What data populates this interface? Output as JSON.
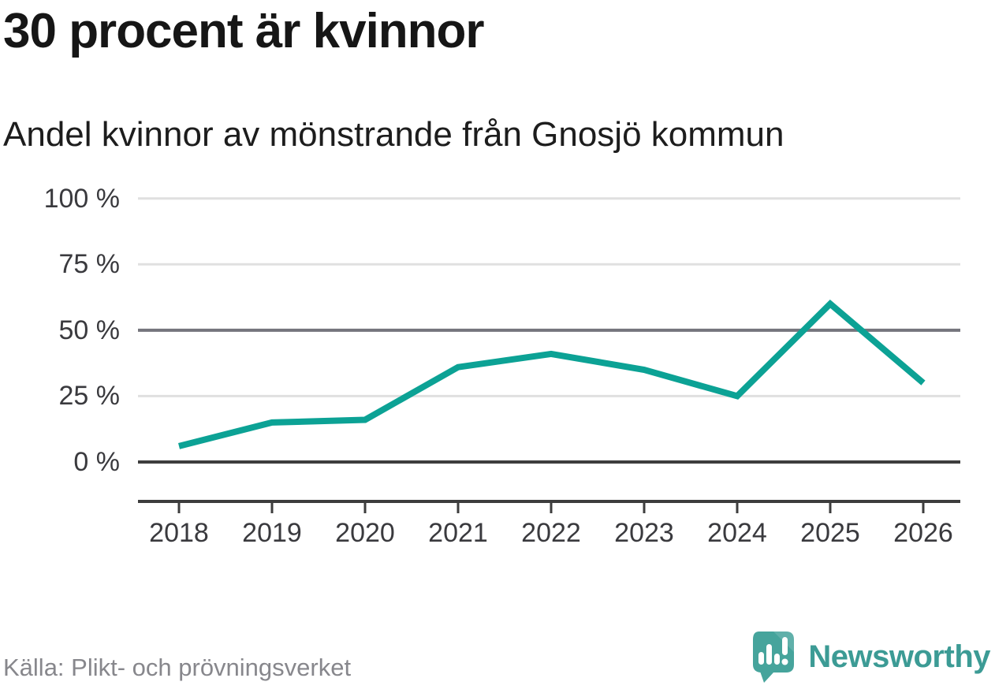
{
  "header": {
    "title": "30 procent är kvinnor",
    "subtitle": "Andel kvinnor av mönstrande från Gnosjö kommun"
  },
  "footer": {
    "source": "Källa: Plikt- och prövningsverket",
    "brand_name": "Newsworthy"
  },
  "colors": {
    "line": "#0ca295",
    "grid_light": "#e0e0e0",
    "grid_mid": "#75757d",
    "grid_zero": "#3d3d3d",
    "axis": "#3d3d3d",
    "brand_teal": "#3c9b95",
    "logo_bubble": "#46a49c"
  },
  "chart_data": {
    "type": "line",
    "title": "30 procent är kvinnor",
    "subtitle": "Andel kvinnor av mönstrande från Gnosjö kommun",
    "categories": [
      "2018",
      "2019",
      "2020",
      "2021",
      "2022",
      "2023",
      "2024",
      "2025",
      "2026"
    ],
    "series": [
      {
        "name": "Andel kvinnor av mönstrande",
        "values": [
          6,
          15,
          16,
          36,
          41,
          35,
          25,
          60,
          30
        ],
        "color": "#0ca295"
      }
    ],
    "unit": "%",
    "xlabel": "",
    "ylabel": "",
    "ylim": [
      0,
      100
    ],
    "yticks": [
      {
        "value": 100,
        "label": "100 %"
      },
      {
        "value": 75,
        "label": "75 %"
      },
      {
        "value": 50,
        "label": "50 %"
      },
      {
        "value": 25,
        "label": "25 %"
      },
      {
        "value": 0,
        "label": "0 %"
      }
    ],
    "grid": "horizontal",
    "emphasized_gridline": 50,
    "baseline": 0,
    "legend": "none"
  }
}
